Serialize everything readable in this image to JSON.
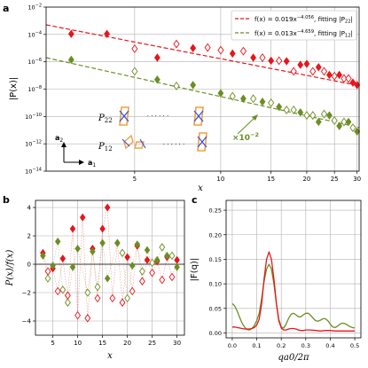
{
  "panel_labels": {
    "a": "a",
    "b": "b",
    "c": "c"
  },
  "colors": {
    "red": "#e8151b",
    "green": "#6b8e23"
  },
  "chart_data": [
    {
      "panel": "a",
      "type": "scatter",
      "xscale": "log",
      "yscale": "log",
      "xlim": [
        2.45,
        30.5
      ],
      "ylim": [
        1e-14,
        0.01
      ],
      "xlabel": "x",
      "ylabel": "|P(x)|",
      "xticks": [
        5,
        10,
        15,
        20,
        25,
        30
      ],
      "yticks": [
        "10^-14",
        "10^-12",
        "10^-10",
        "10^-8",
        "10^-6",
        "10^-4",
        "10^-2"
      ],
      "grid": true,
      "legend_position": "top-right",
      "legend": [
        {
          "prefix": "f(x) = 0.019x",
          "exponent": "−4.056",
          "suffix": ", fitting |P",
          "sub": "22",
          "end": "|",
          "color": "red"
        },
        {
          "prefix": "f(x) = 0.013x",
          "exponent": "−4.659",
          "suffix": ", fitting |P",
          "sub": "12",
          "end": "|",
          "color": "green"
        }
      ],
      "fits": [
        {
          "a": 0.019,
          "b": -4.056,
          "scale": 1,
          "color": "red"
        },
        {
          "a": 0.013,
          "b": -4.659,
          "scale": 0.01,
          "color": "green"
        }
      ],
      "series": [
        {
          "name": "|P22|",
          "color": "red",
          "points": [
            [
              3,
              0.00011,
              1
            ],
            [
              4,
              0.00011,
              1
            ],
            [
              5,
              9e-06,
              0
            ],
            [
              6,
              2e-06,
              1
            ],
            [
              7,
              2e-05,
              0
            ],
            [
              8,
              1e-05,
              1
            ],
            [
              9,
              1.1e-05,
              0
            ],
            [
              10,
              7e-06,
              0
            ],
            [
              11,
              4e-06,
              1
            ],
            [
              12,
              6e-06,
              0
            ],
            [
              13,
              2e-06,
              1
            ],
            [
              14,
              2e-06,
              0
            ],
            [
              15,
              1.2e-06,
              1
            ],
            [
              16,
              1.2e-06,
              0
            ],
            [
              17,
              1.1e-06,
              1
            ],
            [
              18,
              2e-07,
              0
            ],
            [
              19,
              6e-07,
              1
            ],
            [
              20,
              7e-07,
              1
            ],
            [
              21,
              2e-07,
              0
            ],
            [
              22,
              4e-07,
              1
            ],
            [
              23,
              2e-07,
              0
            ],
            [
              24,
              1.1e-07,
              1
            ],
            [
              25,
              9e-08,
              0
            ],
            [
              26,
              1.1e-07,
              1
            ],
            [
              27,
              6e-08,
              0
            ],
            [
              28,
              6e-08,
              0
            ],
            [
              29,
              3e-08,
              1
            ],
            [
              30,
              2e-08,
              1
            ]
          ]
        },
        {
          "name": "|P12|",
          "color": "green",
          "points": [
            [
              3,
              1.4e-06,
              1
            ],
            [
              5,
              2e-07,
              0
            ],
            [
              6,
              5e-08,
              1
            ],
            [
              7,
              1.7e-08,
              0
            ],
            [
              8,
              2e-08,
              1
            ],
            [
              10,
              5e-09,
              1
            ],
            [
              11,
              3e-09,
              0
            ],
            [
              12,
              2e-09,
              1
            ],
            [
              13,
              2e-09,
              0
            ],
            [
              14,
              1.2e-09,
              1
            ],
            [
              15,
              1e-09,
              0
            ],
            [
              16,
              5e-10,
              1
            ],
            [
              17,
              3e-10,
              0
            ],
            [
              18,
              3e-10,
              0
            ],
            [
              19,
              2e-10,
              1
            ],
            [
              20,
              1.2e-10,
              0
            ],
            [
              21,
              1.2e-10,
              0
            ],
            [
              22,
              4e-11,
              1
            ],
            [
              23,
              1.5e-10,
              0
            ],
            [
              24,
              1.2e-10,
              1
            ],
            [
              25,
              5e-11,
              0
            ],
            [
              26,
              2e-11,
              1
            ],
            [
              27,
              4e-11,
              0
            ],
            [
              28,
              4e-11,
              1
            ],
            [
              29,
              1.5e-11,
              0
            ],
            [
              30,
              8e-12,
              1
            ]
          ]
        }
      ],
      "annotations": {
        "scale_note": "×10",
        "scale_exp": "−2",
        "p22_prefix": "P",
        "p22_sub": "22",
        "p12_prefix": "P",
        "p12_sub": "12",
        "a2_prefix": "a",
        "a2_sub": "2",
        "a1_prefix": "a",
        "a1_sub": "1",
        "dots": "· · · · · ·"
      }
    },
    {
      "panel": "b",
      "type": "scatter",
      "xlim": [
        1.5,
        31.5
      ],
      "ylim": [
        -5,
        4.5
      ],
      "xlabel": "x",
      "ylabel": "P(x)/f(x)",
      "xticks": [
        5,
        10,
        15,
        20,
        25,
        30
      ],
      "yticks": [
        -4,
        -2,
        0,
        2,
        4
      ],
      "grid": true,
      "series": [
        {
          "name": "",
          "color": "red",
          "points": [
            [
              3,
              0.8,
              1
            ],
            [
              4,
              -0.5,
              0
            ],
            [
              5,
              -0.3,
              1
            ],
            [
              6,
              -1.9,
              0
            ],
            [
              7,
              0.4,
              1
            ],
            [
              8,
              -2.2,
              0
            ],
            [
              9,
              2.5,
              1
            ],
            [
              10,
              -3.6,
              0
            ],
            [
              11,
              3.3,
              1
            ],
            [
              12,
              -3.8,
              0
            ],
            [
              13,
              1.1,
              1
            ],
            [
              14,
              -2.4,
              0
            ],
            [
              15,
              2.5,
              1
            ],
            [
              16,
              4.0,
              1
            ],
            [
              17,
              -2.4,
              0
            ],
            [
              18,
              1.5,
              1
            ],
            [
              19,
              -2.7,
              0
            ],
            [
              20,
              0.5,
              1
            ],
            [
              21,
              -1.9,
              0
            ],
            [
              22,
              1.3,
              1
            ],
            [
              23,
              -1.2,
              0
            ],
            [
              24,
              0.3,
              1
            ],
            [
              25,
              -0.6,
              0
            ],
            [
              26,
              0.2,
              1
            ],
            [
              27,
              -1.1,
              0
            ],
            [
              28,
              0.5,
              1
            ],
            [
              29,
              -0.9,
              0
            ],
            [
              30,
              0.3,
              1
            ]
          ]
        },
        {
          "name": "",
          "color": "green",
          "points": [
            [
              3,
              0.6,
              1
            ],
            [
              4,
              -1.0,
              0
            ],
            [
              5,
              -0.1,
              1
            ],
            [
              6,
              1.6,
              1
            ],
            [
              7,
              -1.8,
              0
            ],
            [
              8,
              -2.7,
              0
            ],
            [
              9,
              -0.2,
              1
            ],
            [
              10,
              1.1,
              1
            ],
            [
              12,
              -2.0,
              0
            ],
            [
              13,
              0.9,
              1
            ],
            [
              14,
              -1.6,
              0
            ],
            [
              15,
              1.5,
              1
            ],
            [
              16,
              -1.0,
              1
            ],
            [
              18,
              1.5,
              1
            ],
            [
              19,
              0.8,
              0
            ],
            [
              20,
              -2.4,
              0
            ],
            [
              21,
              -0.1,
              1
            ],
            [
              22,
              1.4,
              1
            ],
            [
              23,
              -0.5,
              0
            ],
            [
              24,
              1.0,
              1
            ],
            [
              25,
              0.1,
              0
            ],
            [
              26,
              0.3,
              1
            ],
            [
              27,
              1.2,
              0
            ],
            [
              28,
              0.6,
              1
            ],
            [
              29,
              0.6,
              0
            ],
            [
              30,
              -0.2,
              1
            ]
          ]
        }
      ]
    },
    {
      "panel": "c",
      "type": "line",
      "xlim": [
        -0.025,
        0.525
      ],
      "ylim": [
        -0.01,
        0.27
      ],
      "xlabel": "qa0/2π",
      "ylabel": "|F(q)|",
      "xticks": [
        "0.0",
        "0.1",
        "0.2",
        "0.3",
        "0.4",
        "0.5"
      ],
      "yticks": [
        "0.00",
        "0.05",
        "0.10",
        "0.15",
        "0.20",
        "0.25"
      ],
      "grid": true,
      "series": [
        {
          "name": "",
          "color": "green",
          "points": [
            [
              0,
              0.06
            ],
            [
              0.01,
              0.055
            ],
            [
              0.02,
              0.045
            ],
            [
              0.03,
              0.032
            ],
            [
              0.04,
              0.02
            ],
            [
              0.05,
              0.012
            ],
            [
              0.06,
              0.007
            ],
            [
              0.07,
              0.006
            ],
            [
              0.08,
              0.009
            ],
            [
              0.09,
              0.015
            ],
            [
              0.1,
              0.025
            ],
            [
              0.11,
              0.04
            ],
            [
              0.12,
              0.07
            ],
            [
              0.13,
              0.105
            ],
            [
              0.14,
              0.13
            ],
            [
              0.15,
              0.14
            ],
            [
              0.16,
              0.13
            ],
            [
              0.17,
              0.1
            ],
            [
              0.18,
              0.06
            ],
            [
              0.19,
              0.028
            ],
            [
              0.2,
              0.012
            ],
            [
              0.21,
              0.01
            ],
            [
              0.22,
              0.018
            ],
            [
              0.23,
              0.03
            ],
            [
              0.24,
              0.038
            ],
            [
              0.25,
              0.04
            ],
            [
              0.26,
              0.037
            ],
            [
              0.27,
              0.033
            ],
            [
              0.28,
              0.033
            ],
            [
              0.29,
              0.037
            ],
            [
              0.3,
              0.04
            ],
            [
              0.31,
              0.04
            ],
            [
              0.32,
              0.036
            ],
            [
              0.33,
              0.03
            ],
            [
              0.34,
              0.025
            ],
            [
              0.35,
              0.024
            ],
            [
              0.36,
              0.026
            ],
            [
              0.37,
              0.029
            ],
            [
              0.38,
              0.029
            ],
            [
              0.39,
              0.025
            ],
            [
              0.4,
              0.018
            ],
            [
              0.41,
              0.012
            ],
            [
              0.42,
              0.011
            ],
            [
              0.43,
              0.014
            ],
            [
              0.44,
              0.018
            ],
            [
              0.45,
              0.02
            ],
            [
              0.46,
              0.019
            ],
            [
              0.47,
              0.016
            ],
            [
              0.48,
              0.013
            ],
            [
              0.49,
              0.011
            ],
            [
              0.5,
              0.01
            ]
          ]
        },
        {
          "name": "",
          "color": "red",
          "points": [
            [
              0,
              0.012
            ],
            [
              0.01,
              0.012
            ],
            [
              0.02,
              0.011
            ],
            [
              0.03,
              0.01
            ],
            [
              0.04,
              0.009
            ],
            [
              0.05,
              0.008
            ],
            [
              0.06,
              0.008
            ],
            [
              0.07,
              0.008
            ],
            [
              0.08,
              0.009
            ],
            [
              0.09,
              0.011
            ],
            [
              0.1,
              0.016
            ],
            [
              0.11,
              0.028
            ],
            [
              0.12,
              0.06
            ],
            [
              0.13,
              0.11
            ],
            [
              0.14,
              0.15
            ],
            [
              0.15,
              0.165
            ],
            [
              0.16,
              0.15
            ],
            [
              0.17,
              0.11
            ],
            [
              0.18,
              0.06
            ],
            [
              0.19,
              0.025
            ],
            [
              0.2,
              0.01
            ],
            [
              0.21,
              0.006
            ],
            [
              0.22,
              0.006
            ],
            [
              0.23,
              0.008
            ],
            [
              0.24,
              0.009
            ],
            [
              0.25,
              0.009
            ],
            [
              0.26,
              0.008
            ],
            [
              0.27,
              0.006
            ],
            [
              0.28,
              0.005
            ],
            [
              0.29,
              0.005
            ],
            [
              0.3,
              0.006
            ],
            [
              0.32,
              0.006
            ],
            [
              0.34,
              0.005
            ],
            [
              0.36,
              0.004
            ],
            [
              0.38,
              0.005
            ],
            [
              0.4,
              0.005
            ],
            [
              0.42,
              0.004
            ],
            [
              0.44,
              0.004
            ],
            [
              0.46,
              0.004
            ],
            [
              0.48,
              0.004
            ],
            [
              0.5,
              0.004
            ]
          ]
        }
      ]
    }
  ]
}
